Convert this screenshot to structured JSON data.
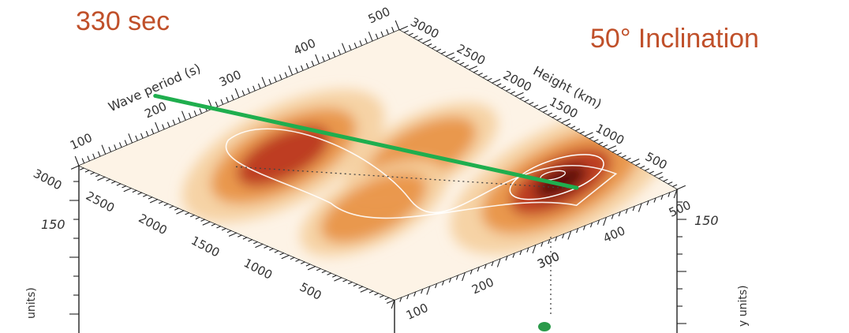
{
  "annotations": {
    "period_marker": "330 sec",
    "inclination": "50° Inclination"
  },
  "chart_data": {
    "type": "heatmap",
    "view": "3d-perspective surface box",
    "top_face": {
      "x_axis": {
        "label": "Wave period (s)",
        "range": [
          80,
          510
        ],
        "ticks": [
          100,
          200,
          300,
          400,
          500
        ]
      },
      "y_axis": {
        "label": "Height (km)",
        "range": [
          0,
          3000
        ],
        "ticks": [
          500,
          1000,
          1500,
          2000,
          2500,
          3000
        ]
      },
      "colormap": [
        "#ffffff",
        "#f5cf9e",
        "#e88e3f",
        "#b9321e",
        "#5a0a10"
      ],
      "peaks": [
        {
          "period": 240,
          "height": 2150,
          "intensity": 0.85
        },
        {
          "period": 420,
          "height": 600,
          "intensity": 1.0
        },
        {
          "period": 350,
          "height": 1550,
          "intensity": 0.45
        },
        {
          "period": 225,
          "height": 1150,
          "intensity": 0.4
        }
      ],
      "contour_levels": [
        0.45,
        0.8
      ]
    },
    "front_face": {
      "x_axis": {
        "label": "",
        "ticks": [
          100,
          200,
          300
        ]
      }
    },
    "left_face": {
      "y_axis": {
        "label": "",
        "ticks": [
          500,
          1000,
          1500,
          2000,
          2500,
          3000
        ]
      },
      "side_tick": "150",
      "vertical_label": "units)"
    },
    "right_face": {
      "y_axis": {
        "label": "",
        "ticks": [
          300,
          400,
          500
        ]
      },
      "side_tick": "150",
      "vertical_label": "y units)"
    },
    "marker_line": {
      "from": [
        262,
        2980
      ],
      "to": [
        424,
        460
      ],
      "color": "#1fae4e"
    },
    "dotted_line": {
      "from": [
        188,
        2250
      ],
      "to": [
        418,
        480
      ]
    }
  }
}
